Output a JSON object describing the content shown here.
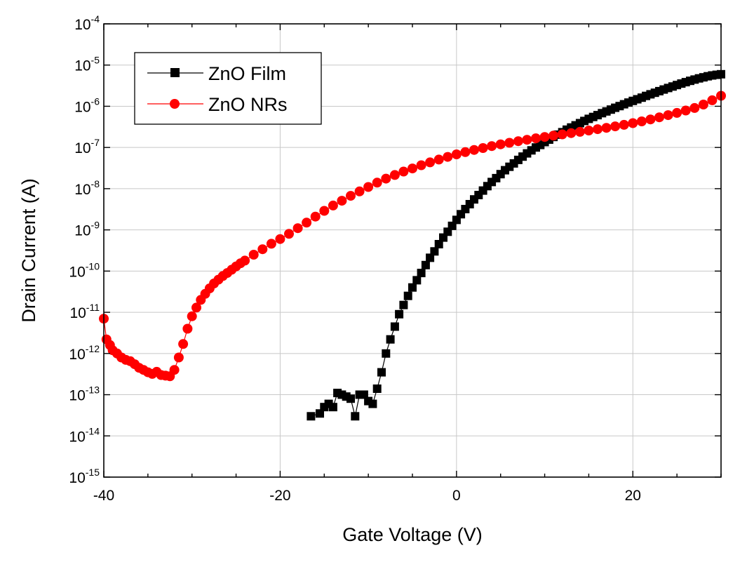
{
  "chart_data": {
    "type": "scatter",
    "title": "",
    "xlabel": "Gate Voltage (V)",
    "ylabel": "Drain Current (A)",
    "xlim": [
      -40,
      30
    ],
    "ylim": [
      1e-15,
      0.0001
    ],
    "yscale": "log",
    "grid": true,
    "legend_position": "top-left",
    "x_ticks": [
      {
        "value": -40,
        "label": "-40"
      },
      {
        "value": -20,
        "label": "-20"
      },
      {
        "value": 0,
        "label": "0"
      },
      {
        "value": 20,
        "label": "20"
      }
    ],
    "y_ticks": [
      {
        "value": -15,
        "base": "10",
        "exp": "-15"
      },
      {
        "value": -14,
        "base": "10",
        "exp": "-14"
      },
      {
        "value": -13,
        "base": "10",
        "exp": "-13"
      },
      {
        "value": -12,
        "base": "10",
        "exp": "-12"
      },
      {
        "value": -11,
        "base": "10",
        "exp": "-11"
      },
      {
        "value": -10,
        "base": "10",
        "exp": "-10"
      },
      {
        "value": -9,
        "base": "10",
        "exp": "-9"
      },
      {
        "value": -8,
        "base": "10",
        "exp": "-8"
      },
      {
        "value": -7,
        "base": "10",
        "exp": "-7"
      },
      {
        "value": -6,
        "base": "10",
        "exp": "-6"
      },
      {
        "value": -5,
        "base": "10",
        "exp": "-5"
      },
      {
        "value": -4,
        "base": "10",
        "exp": "-4"
      }
    ],
    "series": [
      {
        "name": "ZnO Film",
        "color": "#000000",
        "marker": "square",
        "x": [
          -16.5,
          -15.5,
          -15.0,
          -14.5,
          -14.0,
          -13.5,
          -13.0,
          -12.5,
          -12.0,
          -11.5,
          -11.0,
          -10.5,
          -10.0,
          -9.5,
          -9.0,
          -8.5,
          -8.0,
          -7.5,
          -7.0,
          -6.5,
          -6.0,
          -5.5,
          -5.0,
          -4.5,
          -4.0,
          -3.5,
          -3.0,
          -2.5,
          -2.0,
          -1.5,
          -1.0,
          -0.5,
          0.0,
          0.5,
          1.0,
          1.5,
          2.0,
          2.5,
          3.0,
          3.5,
          4.0,
          4.5,
          5.0,
          5.5,
          6.0,
          6.5,
          7.0,
          7.5,
          8.0,
          8.5,
          9.0,
          9.5,
          10.0,
          10.5,
          11.0,
          11.5,
          12.0,
          12.5,
          13.0,
          13.5,
          14.0,
          14.5,
          15.0,
          15.5,
          16.0,
          16.5,
          17.0,
          17.5,
          18.0,
          18.5,
          19.0,
          19.5,
          20.0,
          20.5,
          21.0,
          21.5,
          22.0,
          22.5,
          23.0,
          23.5,
          24.0,
          24.5,
          25.0,
          25.5,
          26.0,
          26.5,
          27.0,
          27.5,
          28.0,
          28.5,
          29.0,
          29.5,
          30.0
        ],
        "y": [
          3e-14,
          3.5e-14,
          5e-14,
          6e-14,
          5e-14,
          1.1e-13,
          1e-13,
          9e-14,
          8e-14,
          3e-14,
          1e-13,
          1e-13,
          7e-14,
          6e-14,
          1.4e-13,
          3.5e-13,
          1e-12,
          2.2e-12,
          4.5e-12,
          9e-12,
          1.5e-11,
          2.5e-11,
          4e-11,
          6e-11,
          9e-11,
          1.4e-10,
          2.1e-10,
          3e-10,
          4.5e-10,
          6.5e-10,
          9e-10,
          1.25e-09,
          1.75e-09,
          2.4e-09,
          3.2e-09,
          4.2e-09,
          5.5e-09,
          7e-09,
          9e-09,
          1.15e-08,
          1.45e-08,
          1.8e-08,
          2.25e-08,
          2.8e-08,
          3.4e-08,
          4.1e-08,
          5e-08,
          6e-08,
          7.2e-08,
          8.5e-08,
          1e-07,
          1.15e-07,
          1.35e-07,
          1.55e-07,
          1.8e-07,
          2.05e-07,
          2.35e-07,
          2.7e-07,
          3.05e-07,
          3.45e-07,
          3.9e-07,
          4.4e-07,
          4.95e-07,
          5.5e-07,
          6.1e-07,
          6.8e-07,
          7.5e-07,
          8.3e-07,
          9.2e-07,
          1.01e-06,
          1.12e-06,
          1.23e-06,
          1.35e-06,
          1.48e-06,
          1.62e-06,
          1.78e-06,
          1.95e-06,
          2.13e-06,
          2.33e-06,
          2.55e-06,
          2.78e-06,
          3.02e-06,
          3.28e-06,
          3.55e-06,
          3.85e-06,
          4.15e-06,
          4.45e-06,
          4.75e-06,
          5.05e-06,
          5.35e-06,
          5.6e-06,
          5.8e-06,
          6e-06
        ]
      },
      {
        "name": "ZnO NRs",
        "color": "#ff0000",
        "marker": "circle",
        "x": [
          -40.0,
          -39.7,
          -39.3,
          -39.0,
          -38.5,
          -38.0,
          -37.5,
          -37.0,
          -36.5,
          -36.0,
          -35.5,
          -35.0,
          -34.5,
          -34.0,
          -33.5,
          -33.0,
          -32.5,
          -32.0,
          -31.5,
          -31.0,
          -30.5,
          -30.0,
          -29.5,
          -29.0,
          -28.5,
          -28.0,
          -27.5,
          -27.0,
          -26.5,
          -26.0,
          -25.5,
          -25.0,
          -24.5,
          -24.0,
          -23.0,
          -22.0,
          -21.0,
          -20.0,
          -19.0,
          -18.0,
          -17.0,
          -16.0,
          -15.0,
          -14.0,
          -13.0,
          -12.0,
          -11.0,
          -10.0,
          -9.0,
          -8.0,
          -7.0,
          -6.0,
          -5.0,
          -4.0,
          -3.0,
          -2.0,
          -1.0,
          0.0,
          1.0,
          2.0,
          3.0,
          4.0,
          5.0,
          6.0,
          7.0,
          8.0,
          9.0,
          10.0,
          11.0,
          12.0,
          13.0,
          14.0,
          15.0,
          16.0,
          17.0,
          18.0,
          19.0,
          20.0,
          21.0,
          22.0,
          23.0,
          24.0,
          25.0,
          26.0,
          27.0,
          28.0,
          29.0,
          30.0
        ],
        "y": [
          7e-12,
          2.2e-12,
          1.6e-12,
          1.2e-12,
          1e-12,
          8e-13,
          7e-13,
          6.5e-13,
          5.5e-13,
          4.5e-13,
          4e-13,
          3.5e-13,
          3.2e-13,
          3.6e-13,
          3e-13,
          2.9e-13,
          2.8e-13,
          4e-13,
          8e-13,
          1.7e-12,
          4e-12,
          8e-12,
          1.3e-11,
          2e-11,
          2.8e-11,
          3.8e-11,
          5e-11,
          6.2e-11,
          7.6e-11,
          9e-11,
          1.08e-10,
          1.3e-10,
          1.55e-10,
          1.8e-10,
          2.5e-10,
          3.4e-10,
          4.6e-10,
          6e-10,
          8e-10,
          1.1e-09,
          1.5e-09,
          2.1e-09,
          2.9e-09,
          3.9e-09,
          5.1e-09,
          6.7e-09,
          8.6e-09,
          1.1e-08,
          1.4e-08,
          1.75e-08,
          2.15e-08,
          2.6e-08,
          3.1e-08,
          3.7e-08,
          4.35e-08,
          5.1e-08,
          5.9e-08,
          6.8e-08,
          7.7e-08,
          8.7e-08,
          9.7e-08,
          1.08e-07,
          1.19e-07,
          1.3e-07,
          1.42e-07,
          1.54e-07,
          1.67e-07,
          1.8e-07,
          1.94e-07,
          2.08e-07,
          2.23e-07,
          2.4e-07,
          2.58e-07,
          2.78e-07,
          3e-07,
          3.25e-07,
          3.55e-07,
          3.9e-07,
          4.3e-07,
          4.8e-07,
          5.4e-07,
          6.1e-07,
          6.9e-07,
          7.9e-07,
          9.1e-07,
          1.1e-06,
          1.4e-06,
          1.8e-06
        ]
      }
    ]
  }
}
